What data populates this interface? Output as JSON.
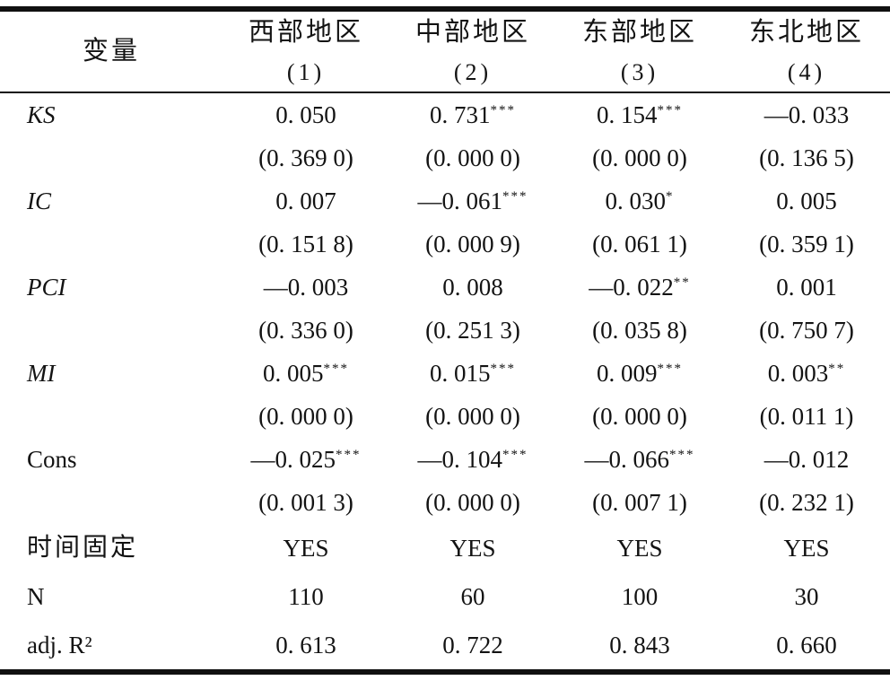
{
  "table": {
    "header": {
      "var_label": "变量",
      "columns": [
        {
          "region": "西部地区",
          "num": "(1)"
        },
        {
          "region": "中部地区",
          "num": "(2)"
        },
        {
          "region": "东部地区",
          "num": "(3)"
        },
        {
          "region": "东北地区",
          "num": "(4)"
        }
      ]
    },
    "rows": [
      {
        "label": "KS",
        "cells": [
          {
            "v": "0. 050"
          },
          {
            "v": "0. 731",
            "s": "***"
          },
          {
            "v": "0. 154",
            "s": "***"
          },
          {
            "v": "—0. 033"
          }
        ]
      },
      {
        "label": "",
        "cells": [
          {
            "v": "(0. 369 0)"
          },
          {
            "v": "(0. 000 0)"
          },
          {
            "v": "(0. 000 0)"
          },
          {
            "v": "(0. 136 5)"
          }
        ]
      },
      {
        "label": "IC",
        "cells": [
          {
            "v": "0. 007"
          },
          {
            "v": "—0. 061",
            "s": "***"
          },
          {
            "v": "0. 030",
            "s": "*"
          },
          {
            "v": "0. 005"
          }
        ]
      },
      {
        "label": "",
        "cells": [
          {
            "v": "(0. 151 8)"
          },
          {
            "v": "(0. 000 9)"
          },
          {
            "v": "(0. 061 1)"
          },
          {
            "v": "(0. 359 1)"
          }
        ]
      },
      {
        "label": "PCI",
        "cells": [
          {
            "v": "—0. 003"
          },
          {
            "v": "0. 008"
          },
          {
            "v": "—0. 022",
            "s": "**"
          },
          {
            "v": "0. 001"
          }
        ]
      },
      {
        "label": "",
        "cells": [
          {
            "v": "(0. 336 0)"
          },
          {
            "v": "(0. 251 3)"
          },
          {
            "v": "(0. 035 8)"
          },
          {
            "v": "(0. 750 7)"
          }
        ]
      },
      {
        "label": "MI",
        "cells": [
          {
            "v": "0. 005",
            "s": "***"
          },
          {
            "v": "0. 015",
            "s": "***"
          },
          {
            "v": "0. 009",
            "s": "***"
          },
          {
            "v": "0. 003",
            "s": "**"
          }
        ]
      },
      {
        "label": "",
        "cells": [
          {
            "v": "(0. 000 0)"
          },
          {
            "v": "(0. 000 0)"
          },
          {
            "v": "(0. 000 0)"
          },
          {
            "v": "(0. 011 1)"
          }
        ]
      },
      {
        "label": "Cons",
        "cells": [
          {
            "v": "—0. 025",
            "s": "***"
          },
          {
            "v": "—0. 104",
            "s": "***"
          },
          {
            "v": "—0. 066",
            "s": "***"
          },
          {
            "v": "—0. 012"
          }
        ]
      },
      {
        "label": "",
        "cells": [
          {
            "v": "(0. 001 3)"
          },
          {
            "v": "(0. 000 0)"
          },
          {
            "v": "(0. 007 1)"
          },
          {
            "v": "(0. 232 1)"
          }
        ]
      },
      {
        "label": "时间固定",
        "cells": [
          {
            "v": "YES"
          },
          {
            "v": "YES"
          },
          {
            "v": "YES"
          },
          {
            "v": "YES"
          }
        ]
      },
      {
        "label": "N",
        "cells": [
          {
            "v": "110"
          },
          {
            "v": "60"
          },
          {
            "v": "100"
          },
          {
            "v": "30"
          }
        ]
      },
      {
        "label": "adj. R²",
        "cells": [
          {
            "v": "0. 613"
          },
          {
            "v": "0. 722"
          },
          {
            "v": "0. 843"
          },
          {
            "v": "0. 660"
          }
        ]
      }
    ]
  },
  "colors": {
    "text": "#131313",
    "rule": "#101010",
    "background": "#ffffff"
  }
}
